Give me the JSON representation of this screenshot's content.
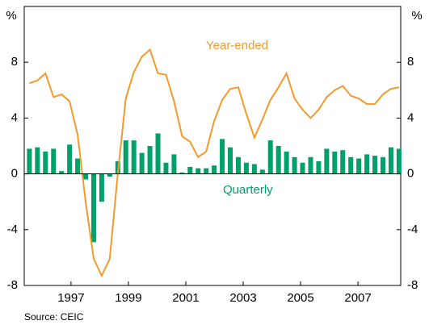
{
  "chart_data": {
    "type": "bar_line",
    "y_unit": "%",
    "source": "Source: CEIC",
    "annotations": [
      {
        "text": "Year-ended",
        "series": 1
      },
      {
        "text": "Quarterly",
        "series": 0
      }
    ],
    "x": [
      1995.55,
      1995.83,
      1996.11,
      1996.39,
      1996.67,
      1996.95,
      1997.23,
      1997.51,
      1997.79,
      1998.07,
      1998.35,
      1998.63,
      1998.91,
      1999.19,
      1999.47,
      1999.75,
      2000.03,
      2000.31,
      2000.59,
      2000.87,
      2001.15,
      2001.43,
      2001.71,
      2001.99,
      2002.27,
      2002.55,
      2002.83,
      2003.11,
      2003.39,
      2003.67,
      2003.95,
      2004.23,
      2004.51,
      2004.79,
      2005.07,
      2005.35,
      2005.63,
      2005.91,
      2006.19,
      2006.47,
      2006.75,
      2007.03,
      2007.31,
      2007.59,
      2007.87,
      2008.15,
      2008.43
    ],
    "series": [
      {
        "name": "Quarterly",
        "kind": "bar",
        "color": "#00a06a",
        "values": [
          1.8,
          1.9,
          1.6,
          1.8,
          0.2,
          2.1,
          1.1,
          -0.4,
          -4.9,
          -2.0,
          -0.2,
          0.9,
          2.4,
          2.4,
          1.5,
          2.0,
          2.9,
          0.8,
          1.4,
          0.1,
          0.5,
          0.4,
          0.4,
          0.6,
          2.5,
          1.9,
          1.2,
          0.8,
          0.7,
          0.3,
          2.4,
          2.0,
          1.6,
          1.2,
          0.8,
          1.2,
          0.9,
          1.8,
          1.6,
          1.7,
          1.2,
          1.1,
          1.4,
          1.3,
          1.2,
          1.9,
          1.8
        ]
      },
      {
        "name": "Year-ended",
        "kind": "line",
        "color": "#f39a2c",
        "values": [
          6.5,
          6.7,
          7.2,
          5.5,
          5.7,
          5.2,
          2.8,
          -2.0,
          -6.1,
          -7.3,
          -6.1,
          0,
          5.4,
          7.3,
          8.4,
          8.9,
          7.2,
          7.1,
          5.2,
          2.7,
          2.3,
          1.2,
          1.6,
          3.8,
          5.3,
          6.1,
          6.2,
          4.3,
          2.6,
          3.9,
          5.3,
          6.2,
          7.2,
          5.4,
          4.6,
          4.0,
          4.6,
          5.5,
          6.0,
          6.3,
          5.6,
          5.4,
          5.0,
          5.0,
          5.7,
          6.1,
          6.2
        ]
      }
    ],
    "xlim": [
      1995.37,
      2008.49
    ],
    "xticks": [
      1997,
      1999,
      2001,
      2003,
      2005,
      2007
    ],
    "ylim": [
      -8,
      12
    ],
    "yticks": [
      -8,
      -4,
      0,
      4,
      8
    ],
    "grid": false
  }
}
